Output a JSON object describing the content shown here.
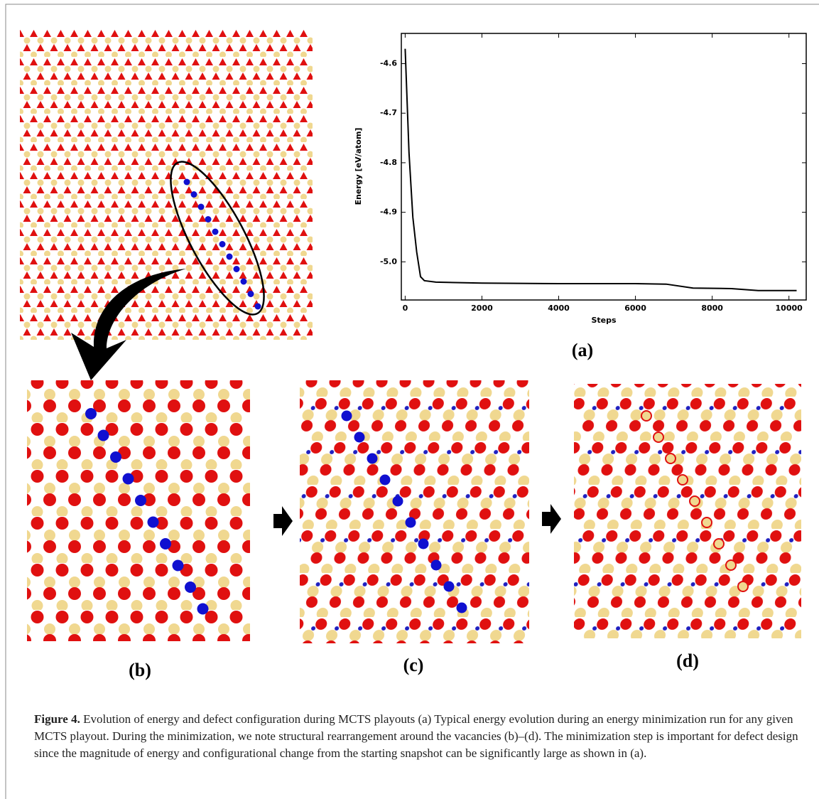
{
  "chart_data": {
    "type": "line",
    "xlabel": "Steps",
    "ylabel": "Energy [eV/atom]",
    "x": [
      0,
      100,
      200,
      300,
      400,
      500,
      800,
      2000,
      4000,
      6000,
      6800,
      7500,
      8500,
      9200,
      10200
    ],
    "series": [
      {
        "color": "#000000",
        "values": [
          -4.57,
          -4.78,
          -4.91,
          -4.98,
          -5.03,
          -5.038,
          -5.041,
          -5.043,
          -5.044,
          -5.044,
          -5.045,
          -5.053,
          -5.054,
          -5.058,
          -5.058
        ]
      }
    ],
    "xlim": [
      -100,
      10450
    ],
    "ylim": [
      -5.077,
      -4.539
    ],
    "xticks": [
      0,
      2000,
      4000,
      6000,
      8000,
      10000
    ],
    "yticks": [
      -4.6,
      -4.7,
      -4.8,
      -4.9,
      {
        "value": -5,
        "label": "-5.0"
      }
    ]
  },
  "panels": [
    "(a)",
    "(b)",
    "(c)",
    "(d)"
  ],
  "caption": {
    "label": "Figure 4.",
    "text": "Evolution of energy and defect configuration during MCTS playouts (a) Typical energy evolution during an energy minimization run for any given MCTS playout. During the minimization, we note structural rearrangement around the vacancies (b)–(d). The minimization step is important for defect design since the magnitude of energy and configurational change from the starting snapshot can be significantly large as shown in (a)."
  }
}
